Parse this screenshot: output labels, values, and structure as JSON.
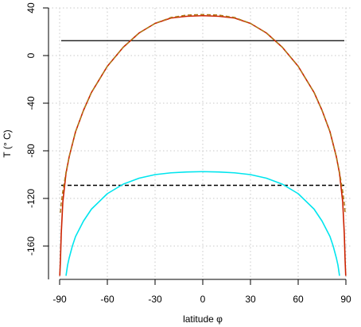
{
  "chart_data": {
    "type": "line",
    "title": "",
    "xlabel": "latitude φ",
    "ylabel": "T (° C)",
    "xlim": [
      -90,
      90
    ],
    "ylim": [
      -185,
      40
    ],
    "x_ticks": [
      -90,
      -60,
      -30,
      0,
      30,
      60,
      90
    ],
    "x_tick_labels": [
      "-90",
      "-60",
      "-30",
      "0",
      "30",
      "60",
      "90"
    ],
    "y_ticks": [
      40,
      0,
      -40,
      -80,
      -120,
      -160
    ],
    "y_tick_labels": [
      "40",
      "0",
      "-40",
      "-80",
      "-120",
      "-160"
    ],
    "grid": true,
    "legend": "none",
    "series": [
      {
        "style": "solid",
        "color": "#000000",
        "x": [
          -89,
          89
        ],
        "y": [
          12.5,
          12.5
        ]
      },
      {
        "style": "dashed",
        "color": "#000000",
        "x": [
          -89,
          89
        ],
        "y": [
          -109,
          -109
        ]
      },
      {
        "style": "solid",
        "color": "#cc2200",
        "x": [
          -89.9,
          -89.5,
          -89,
          -88,
          -86,
          -84,
          -80,
          -75,
          -70,
          -60,
          -50,
          -40,
          -30,
          -20,
          -10,
          0,
          10,
          20,
          30,
          40,
          50,
          60,
          70,
          75,
          80,
          84,
          86,
          88,
          89,
          89.5,
          89.9
        ],
        "y": [
          -185,
          -172,
          -150,
          -123,
          -99,
          -85,
          -64,
          -46,
          -31,
          -9,
          7,
          19,
          27,
          31.5,
          33,
          33.5,
          33,
          31.5,
          27,
          19,
          7,
          -9,
          -31,
          -46,
          -64,
          -85,
          -99,
          -123,
          -150,
          -172,
          -185
        ]
      },
      {
        "style": "dashed",
        "color": "#b07a1a",
        "x": [
          -89.5,
          -89,
          -88,
          -86,
          -84,
          -80,
          -75,
          -70,
          -60,
          -50,
          -40,
          -30,
          -20,
          -10,
          0,
          10,
          20,
          30,
          40,
          50,
          60,
          70,
          75,
          80,
          84,
          86,
          88,
          89,
          89.5
        ],
        "y": [
          -132,
          -124,
          -114,
          -98,
          -85,
          -64,
          -46,
          -31,
          -9,
          7,
          19,
          27,
          32,
          34,
          34.5,
          34,
          32,
          27,
          19,
          7,
          -9,
          -31,
          -46,
          -64,
          -85,
          -98,
          -114,
          -124,
          -132
        ]
      },
      {
        "style": "solid",
        "color": "#00e5ee",
        "x": [
          -86,
          -85,
          -84,
          -82,
          -80,
          -75,
          -70,
          -60,
          -50,
          -40,
          -30,
          -20,
          -10,
          0,
          10,
          20,
          30,
          40,
          50,
          60,
          70,
          75,
          80,
          82,
          84,
          85,
          86
        ],
        "y": [
          -185,
          -176,
          -170,
          -160,
          -152,
          -139,
          -129,
          -116,
          -108,
          -103,
          -100,
          -98.5,
          -97.8,
          -97.5,
          -97.8,
          -98.5,
          -100,
          -103,
          -108,
          -116,
          -129,
          -139,
          -152,
          -160,
          -170,
          -176,
          -185
        ]
      }
    ]
  }
}
